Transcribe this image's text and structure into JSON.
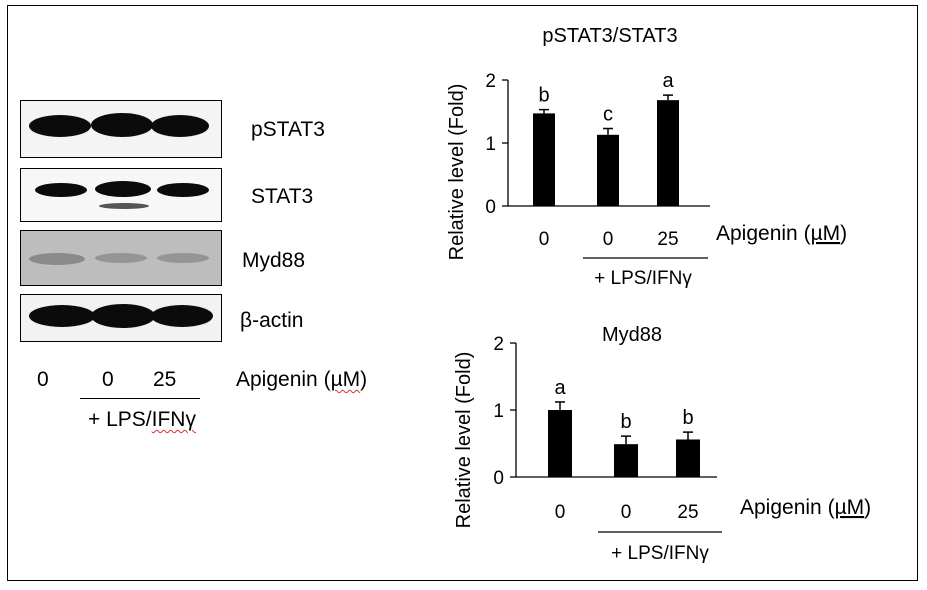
{
  "blot": {
    "labels": [
      "pSTAT3",
      "STAT3",
      "Myd88",
      "β-actin"
    ],
    "doses": [
      "0",
      "0",
      "25"
    ],
    "apigenin_prefix": "Apigenin (",
    "apigenin_unit": "µM",
    "apigenin_suffix": ")",
    "treatment_prefix": "+ LPS/",
    "treatment_word": "IFNγ"
  },
  "chart_data": [
    {
      "type": "bar",
      "title": "pSTAT3/STAT3",
      "ylabel": "Relative level (Fold)",
      "xlabel": "Apigenin (µM)",
      "categories": [
        "0",
        "0",
        "25"
      ],
      "values": [
        1.47,
        1.13,
        1.68
      ],
      "errors": [
        0.06,
        0.1,
        0.08
      ],
      "letters": [
        "b",
        "c",
        "a"
      ],
      "ylim": [
        0,
        2
      ],
      "yticks": [
        0,
        1,
        2
      ],
      "group_label": "+ LPS/IFNγ",
      "bar_color": "#000000"
    },
    {
      "type": "bar",
      "title": "Myd88",
      "ylabel": "Relative level (Fold)",
      "xlabel": "Apigenin (µM)",
      "categories": [
        "0",
        "0",
        "25"
      ],
      "values": [
        1.0,
        0.49,
        0.56
      ],
      "errors": [
        0.12,
        0.12,
        0.11
      ],
      "letters": [
        "a",
        "b",
        "b"
      ],
      "ylim": [
        0,
        2
      ],
      "yticks": [
        0,
        1,
        2
      ],
      "group_label": "+ LPS/IFNγ",
      "bar_color": "#000000"
    }
  ]
}
